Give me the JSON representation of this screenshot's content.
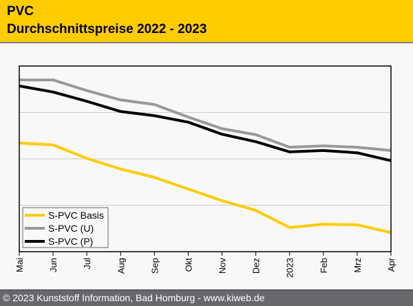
{
  "header": {
    "title": "PVC",
    "subtitle": "Durchschnittspreise 2022 - 2023"
  },
  "footer": {
    "copyright": "© 2023 Kunststoff Information, Bad Homburg - www.kiweb.de"
  },
  "chart_data": {
    "type": "line",
    "title": "PVC Durchschnittspreise 2022 - 2023",
    "xlabel": "",
    "ylabel": "",
    "y_tick_labels_shown": false,
    "ylim": [
      0,
      4
    ],
    "y_gridlines": [
      1,
      2,
      3
    ],
    "grid": true,
    "legend_position": "bottom-left",
    "categories": [
      "Mai",
      "Jun",
      "Jul",
      "Aug",
      "Sep",
      "Okt",
      "Nov",
      "Dez",
      "2023",
      "Feb",
      "Mrz",
      "Apr"
    ],
    "series": [
      {
        "name": "S-PVC Basis",
        "color": "#ffcc00",
        "values": [
          2.34,
          2.3,
          2.01,
          1.78,
          1.6,
          1.35,
          1.1,
          0.89,
          0.52,
          0.59,
          0.58,
          0.41
        ]
      },
      {
        "name": "S-PVC (U)",
        "color": "#999999",
        "values": [
          3.7,
          3.7,
          3.47,
          3.27,
          3.17,
          2.9,
          2.65,
          2.52,
          2.25,
          2.28,
          2.25,
          2.18
        ]
      },
      {
        "name": "S-PVC (P)",
        "color": "#000000",
        "values": [
          3.57,
          3.44,
          3.24,
          3.02,
          2.93,
          2.79,
          2.53,
          2.37,
          2.15,
          2.18,
          2.13,
          1.96
        ]
      }
    ]
  }
}
